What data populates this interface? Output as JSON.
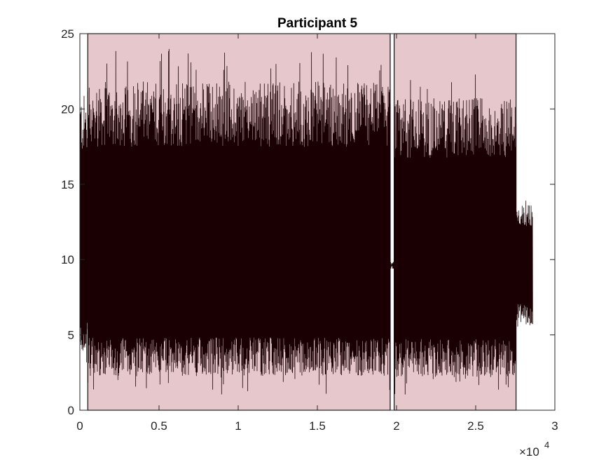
{
  "chart_data": {
    "type": "line",
    "title": "Participant 5",
    "xlabel": "",
    "ylabel": "",
    "xlim": [
      0,
      30000
    ],
    "ylim": [
      0,
      25
    ],
    "x_ticks": [
      0,
      5000,
      10000,
      15000,
      20000,
      25000,
      30000
    ],
    "x_tick_labels": [
      "0",
      "0.5",
      "1",
      "1.5",
      "2",
      "2.5",
      "3"
    ],
    "x_exponent_label": "×10",
    "x_exponent_power": "4",
    "y_ticks": [
      0,
      5,
      10,
      15,
      20,
      25
    ],
    "y_tick_labels": [
      "0",
      "5",
      "10",
      "15",
      "20",
      "25"
    ],
    "grid": false,
    "shaded_regions": [
      {
        "x_start": 500,
        "x_end": 19600,
        "color": "#e6c8cc"
      },
      {
        "x_start": 19850,
        "x_end": 27550,
        "color": "#e6c8cc"
      }
    ],
    "series": [
      {
        "color": "#1a0003",
        "segments": [
          {
            "x_start": 0,
            "x_end": 500,
            "low": 2.8,
            "high": 23.0,
            "center": 9.5
          },
          {
            "x_start": 500,
            "x_end": 19600,
            "low": 1.0,
            "high": 24.0,
            "center": 9.5
          },
          {
            "x_start": 19600,
            "x_end": 19850,
            "low": 9.4,
            "high": 9.9,
            "center": 9.6
          },
          {
            "x_start": 19850,
            "x_end": 27550,
            "low": 0.9,
            "high": 22.7,
            "center": 9.5
          },
          {
            "x_start": 27550,
            "x_end": 28600,
            "low": 5.0,
            "high": 14.3,
            "center": 9.7
          }
        ]
      }
    ],
    "colors": {
      "axis": "#262626",
      "trace": "#1a0003",
      "shade": "#e6c8cc"
    }
  }
}
